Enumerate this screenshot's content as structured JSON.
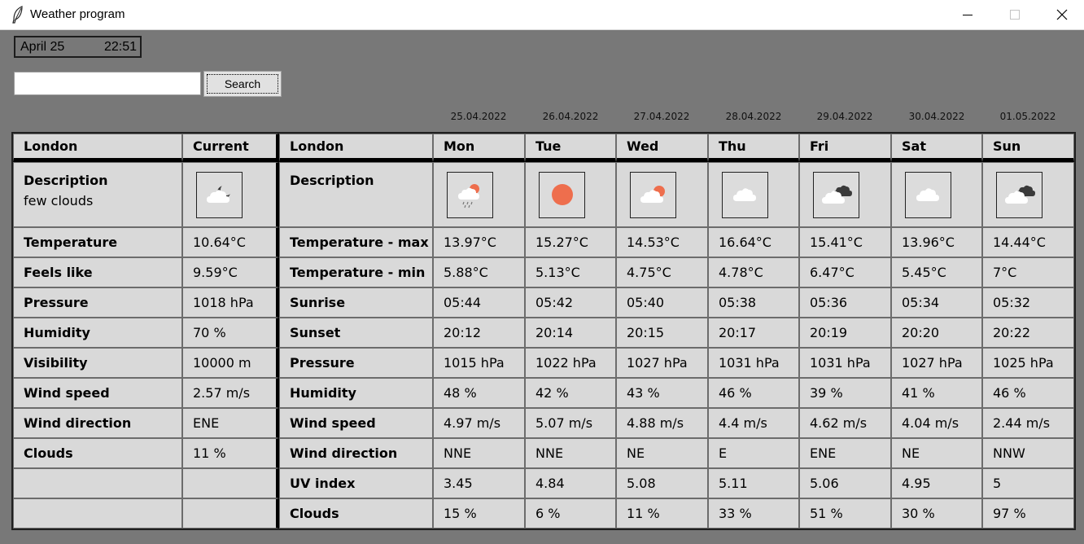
{
  "window": {
    "title": "Weather program"
  },
  "header": {
    "date": "April 25",
    "time": "22:51"
  },
  "search": {
    "value": "",
    "button_label": "Search"
  },
  "current": {
    "city": "London",
    "col_label": "Current",
    "description_label": "Description",
    "description": "few clouds",
    "icon": "few-clouds-night-icon",
    "rows": [
      {
        "label": "Temperature",
        "value": "10.64°C"
      },
      {
        "label": "Feels like",
        "value": "9.59°C"
      },
      {
        "label": "Pressure",
        "value": "1018 hPa"
      },
      {
        "label": "Humidity",
        "value": "70 %"
      },
      {
        "label": "Visibility",
        "value": "10000 m"
      },
      {
        "label": "Wind speed",
        "value": "2.57 m/s"
      },
      {
        "label": "Wind direction",
        "value": "ENE"
      },
      {
        "label": "Clouds",
        "value": "11 %"
      }
    ]
  },
  "forecast": {
    "city": "London",
    "description_label": "Description",
    "days": [
      {
        "date": "25.04.2022",
        "day": "Mon",
        "icon": "light-rain-icon"
      },
      {
        "date": "26.04.2022",
        "day": "Tue",
        "icon": "clear-sky-icon"
      },
      {
        "date": "27.04.2022",
        "day": "Wed",
        "icon": "few-clouds-day-icon"
      },
      {
        "date": "28.04.2022",
        "day": "Thu",
        "icon": "scattered-clouds-icon"
      },
      {
        "date": "29.04.2022",
        "day": "Fri",
        "icon": "broken-clouds-icon"
      },
      {
        "date": "30.04.2022",
        "day": "Sat",
        "icon": "scattered-clouds-icon"
      },
      {
        "date": "01.05.2022",
        "day": "Sun",
        "icon": "broken-clouds-icon"
      }
    ],
    "rows": [
      {
        "label": "Temperature - max",
        "values": [
          "13.97°C",
          "15.27°C",
          "14.53°C",
          "16.64°C",
          "15.41°C",
          "13.96°C",
          "14.44°C"
        ]
      },
      {
        "label": "Temperature - min",
        "values": [
          "5.88°C",
          "5.13°C",
          "4.75°C",
          "4.78°C",
          "6.47°C",
          "5.45°C",
          "7°C"
        ]
      },
      {
        "label": "Sunrise",
        "values": [
          "05:44",
          "05:42",
          "05:40",
          "05:38",
          "05:36",
          "05:34",
          "05:32"
        ]
      },
      {
        "label": "Sunset",
        "values": [
          "20:12",
          "20:14",
          "20:15",
          "20:17",
          "20:19",
          "20:20",
          "20:22"
        ]
      },
      {
        "label": "Pressure",
        "values": [
          "1015 hPa",
          "1022 hPa",
          "1027 hPa",
          "1031 hPa",
          "1031 hPa",
          "1027 hPa",
          "1025 hPa"
        ]
      },
      {
        "label": "Humidity",
        "values": [
          "48 %",
          "42 %",
          "43 %",
          "46 %",
          "39 %",
          "41 %",
          "46 %"
        ]
      },
      {
        "label": "Wind speed",
        "values": [
          "4.97 m/s",
          "5.07 m/s",
          "4.88 m/s",
          "4.4 m/s",
          "4.62 m/s",
          "4.04 m/s",
          "2.44 m/s"
        ]
      },
      {
        "label": "Wind direction",
        "values": [
          "NNE",
          "NNE",
          "NE",
          "E",
          "ENE",
          "NE",
          "NNW"
        ]
      },
      {
        "label": "UV index",
        "values": [
          "3.45",
          "4.84",
          "5.08",
          "5.11",
          "5.06",
          "4.95",
          "5"
        ]
      },
      {
        "label": "Clouds",
        "values": [
          "15 %",
          "6 %",
          "11 %",
          "33 %",
          "51 %",
          "30 %",
          "97 %"
        ]
      }
    ]
  },
  "colors": {
    "background": "#787878",
    "cell": "#d9d9d9",
    "sun": "#ee6e4d",
    "cloud": "#ffffff",
    "dark_cloud": "#3a3a3a"
  }
}
